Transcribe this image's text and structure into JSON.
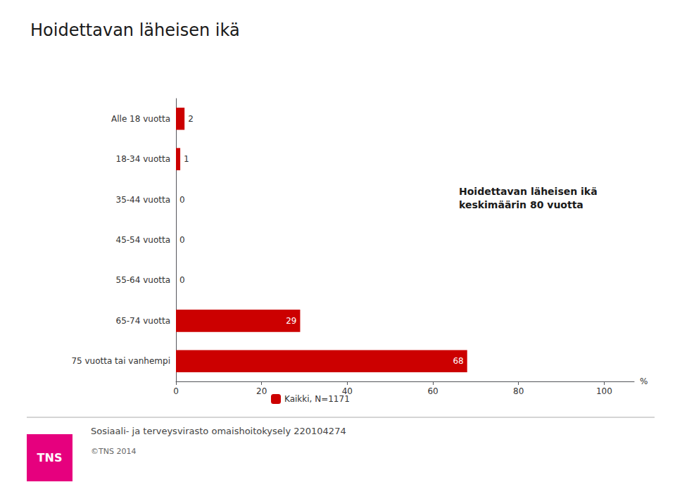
{
  "chart_data": {
    "type": "bar",
    "orientation": "horizontal",
    "title": "Hoidettavan läheisen ikä",
    "categories": [
      "Alle 18 vuotta",
      "18-34 vuotta",
      "35-44 vuotta",
      "45-54 vuotta",
      "55-64 vuotta",
      "65-74 vuotta",
      "75 vuotta tai vanhempi"
    ],
    "series": [
      {
        "name": "Kaikki, N=1171",
        "color": "#cc0000",
        "values": [
          2,
          1,
          0,
          0,
          0,
          29,
          68
        ]
      }
    ],
    "xlim": [
      0,
      107
    ],
    "xticks": [
      0,
      20,
      40,
      60,
      80,
      100
    ],
    "xlabel": "%",
    "data_labels": true,
    "grid": false,
    "legend": "bottom",
    "annotations": [
      {
        "text": "Hoidettavan läheisen ikä\nkeskimäärin 80 vuotta"
      },
      {
        "text": "Sosiaali- ja terveysvirasto omaishoitokysely 220104274"
      },
      {
        "text": "©TNS 2014"
      },
      {
        "text": "TNS",
        "color": "#e6007e"
      }
    ]
  }
}
